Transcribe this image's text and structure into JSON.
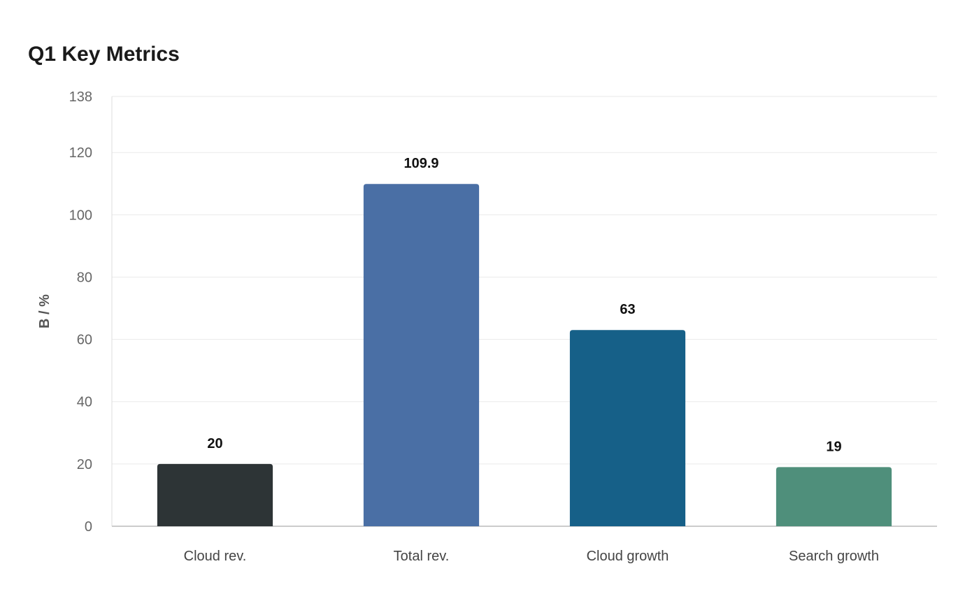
{
  "chart_data": {
    "type": "bar",
    "title": "Q1 Key Metrics",
    "xlabel": "",
    "ylabel": "B / %",
    "categories": [
      "Cloud rev.",
      "Total rev.",
      "Cloud growth",
      "Search growth"
    ],
    "values": [
      20,
      109.9,
      63,
      19
    ],
    "value_labels": [
      "20",
      "109.9",
      "63",
      "19"
    ],
    "colors": [
      "#2d3436",
      "#4a6fa5",
      "#166088",
      "#4f8f7b"
    ],
    "ylim": [
      0,
      138
    ],
    "yticks": [
      0,
      20,
      40,
      60,
      80,
      100,
      120,
      138
    ],
    "grid": true,
    "legend": "none"
  }
}
